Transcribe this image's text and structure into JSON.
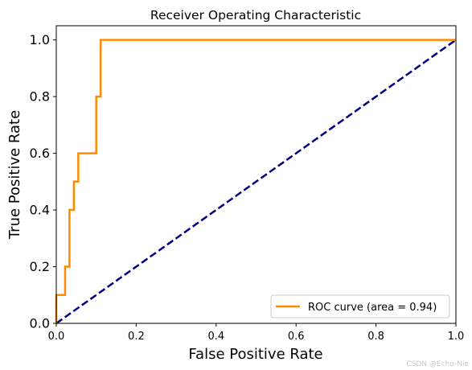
{
  "chart_data": {
    "type": "line",
    "title": "Receiver Operating Characteristic",
    "xlabel": "False Positive Rate",
    "ylabel": "True Positive Rate",
    "xlim": [
      0.0,
      1.0
    ],
    "ylim": [
      0.0,
      1.05
    ],
    "x_ticks": [
      "0.0",
      "0.2",
      "0.4",
      "0.6",
      "0.8",
      "1.0"
    ],
    "y_ticks": [
      "0.0",
      "0.2",
      "0.4",
      "0.6",
      "0.8",
      "1.0"
    ],
    "grid": false,
    "legend_position": "lower-right",
    "series": [
      {
        "name": "ROC curve (area = 0.94)",
        "color": "#ff8c00",
        "style": "solid",
        "x": [
          0.0,
          0.0,
          0.022,
          0.022,
          0.033,
          0.033,
          0.044,
          0.044,
          0.055,
          0.055,
          0.1,
          0.1,
          0.111,
          0.111,
          1.0
        ],
        "y": [
          0.0,
          0.1,
          0.1,
          0.2,
          0.2,
          0.4,
          0.4,
          0.5,
          0.5,
          0.6,
          0.6,
          0.8,
          0.8,
          1.0,
          1.0
        ]
      },
      {
        "color": "#000080",
        "style": "dashed",
        "x": [
          0.0,
          1.0
        ],
        "y": [
          0.0,
          1.0
        ]
      }
    ]
  },
  "watermark": "CSDN @Echo-Nie"
}
